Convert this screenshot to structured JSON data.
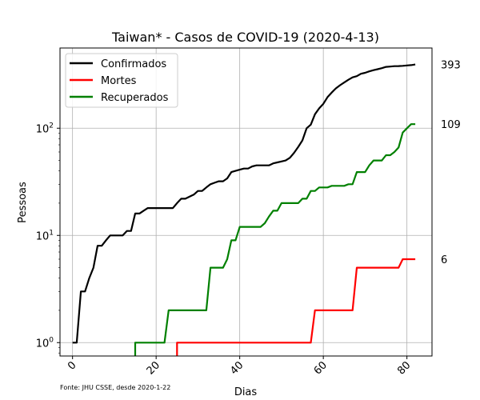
{
  "chart_data": {
    "type": "line",
    "title": "Taiwan* - Casos de COVID-19 (2020-4-13)",
    "xlabel": "Dias",
    "ylabel": "Pessoas",
    "source": "Fonte: JHU CSSE, desde 2020-1-22",
    "yscale": "log",
    "xlim": [
      -3,
      86
    ],
    "ylim": [
      0.75,
      560
    ],
    "xticks": [
      0,
      20,
      40,
      60,
      80
    ],
    "yticks": [
      {
        "base": "10",
        "exp": "0",
        "value": 1
      },
      {
        "base": "10",
        "exp": "1",
        "value": 10
      },
      {
        "base": "10",
        "exp": "2",
        "value": 100
      }
    ],
    "grid": true,
    "legend_position": "top-left",
    "end_labels": [
      {
        "text": "393",
        "value": 393
      },
      {
        "text": "109",
        "value": 109
      },
      {
        "text": "6",
        "value": 6
      }
    ],
    "series": [
      {
        "name": "Confirmados",
        "color": "#000000",
        "points": [
          [
            0,
            1
          ],
          [
            1,
            1
          ],
          [
            2,
            3
          ],
          [
            3,
            3
          ],
          [
            4,
            4
          ],
          [
            5,
            5
          ],
          [
            6,
            8
          ],
          [
            7,
            8
          ],
          [
            8,
            9
          ],
          [
            9,
            10
          ],
          [
            10,
            10
          ],
          [
            11,
            10
          ],
          [
            12,
            10
          ],
          [
            13,
            11
          ],
          [
            14,
            11
          ],
          [
            15,
            16
          ],
          [
            16,
            16
          ],
          [
            17,
            17
          ],
          [
            18,
            18
          ],
          [
            19,
            18
          ],
          [
            20,
            18
          ],
          [
            21,
            18
          ],
          [
            22,
            18
          ],
          [
            23,
            18
          ],
          [
            24,
            18
          ],
          [
            25,
            20
          ],
          [
            26,
            22
          ],
          [
            27,
            22
          ],
          [
            28,
            23
          ],
          [
            29,
            24
          ],
          [
            30,
            26
          ],
          [
            31,
            26
          ],
          [
            32,
            28
          ],
          [
            33,
            30
          ],
          [
            34,
            31
          ],
          [
            35,
            32
          ],
          [
            36,
            32
          ],
          [
            37,
            34
          ],
          [
            38,
            39
          ],
          [
            39,
            40
          ],
          [
            40,
            41
          ],
          [
            41,
            42
          ],
          [
            42,
            42
          ],
          [
            43,
            44
          ],
          [
            44,
            45
          ],
          [
            45,
            45
          ],
          [
            46,
            45
          ],
          [
            47,
            45
          ],
          [
            48,
            47
          ],
          [
            49,
            48
          ],
          [
            50,
            49
          ],
          [
            51,
            50
          ],
          [
            52,
            53
          ],
          [
            53,
            59
          ],
          [
            54,
            67
          ],
          [
            55,
            77
          ],
          [
            56,
            100
          ],
          [
            57,
            108
          ],
          [
            58,
            135
          ],
          [
            59,
            153
          ],
          [
            60,
            169
          ],
          [
            61,
            195
          ],
          [
            62,
            215
          ],
          [
            63,
            235
          ],
          [
            64,
            252
          ],
          [
            65,
            267
          ],
          [
            66,
            283
          ],
          [
            67,
            298
          ],
          [
            68,
            306
          ],
          [
            69,
            322
          ],
          [
            70,
            329
          ],
          [
            71,
            339
          ],
          [
            72,
            348
          ],
          [
            73,
            355
          ],
          [
            74,
            363
          ],
          [
            75,
            373
          ],
          [
            76,
            376
          ],
          [
            77,
            379
          ],
          [
            78,
            380
          ],
          [
            79,
            382
          ],
          [
            80,
            385
          ],
          [
            81,
            388
          ],
          [
            82,
            393
          ]
        ]
      },
      {
        "name": "Mortes",
        "color": "#ff0000",
        "points": [
          [
            25,
            0.7
          ],
          [
            25,
            1
          ],
          [
            57,
            1
          ],
          [
            58,
            2
          ],
          [
            67,
            2
          ],
          [
            68,
            5
          ],
          [
            78,
            5
          ],
          [
            79,
            6
          ],
          [
            82,
            6
          ]
        ]
      },
      {
        "name": "Recuperados",
        "color": "#008000",
        "points": [
          [
            15,
            0.7
          ],
          [
            15,
            1
          ],
          [
            22,
            1
          ],
          [
            23,
            2
          ],
          [
            32,
            2
          ],
          [
            33,
            5
          ],
          [
            36,
            5
          ],
          [
            37,
            6
          ],
          [
            38,
            9
          ],
          [
            39,
            9
          ],
          [
            40,
            12
          ],
          [
            45,
            12
          ],
          [
            46,
            13
          ],
          [
            47,
            15
          ],
          [
            48,
            17
          ],
          [
            49,
            17
          ],
          [
            50,
            20
          ],
          [
            54,
            20
          ],
          [
            55,
            22
          ],
          [
            56,
            22
          ],
          [
            57,
            26
          ],
          [
            58,
            26
          ],
          [
            59,
            28
          ],
          [
            61,
            28
          ],
          [
            62,
            29
          ],
          [
            65,
            29
          ],
          [
            66,
            30
          ],
          [
            67,
            30
          ],
          [
            68,
            39
          ],
          [
            70,
            39
          ],
          [
            71,
            45
          ],
          [
            72,
            50
          ],
          [
            74,
            50
          ],
          [
            75,
            56
          ],
          [
            76,
            56
          ],
          [
            77,
            60
          ],
          [
            78,
            66
          ],
          [
            79,
            91
          ],
          [
            80,
            100
          ],
          [
            81,
            109
          ],
          [
            82,
            109
          ]
        ]
      }
    ]
  }
}
